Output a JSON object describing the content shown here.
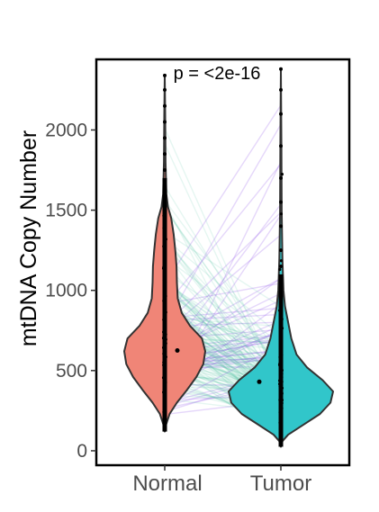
{
  "chart_data": {
    "type": "violin",
    "ylabel": "mtDNA Copy Number",
    "xlabel": "",
    "categories": [
      "Normal",
      "Tumor"
    ],
    "ylim": [
      -90,
      2440
    ],
    "yticks": [
      0,
      500,
      1000,
      1500,
      2000
    ],
    "annotation": "p = <2e-16",
    "grid": false,
    "legend": "none",
    "colors": {
      "Normal": "#f08577",
      "Tumor": "#31c6ca",
      "outline": "#333333",
      "pair_increase": "#8a4be6",
      "pair_decrease": "#5cc9a7"
    },
    "groups": [
      {
        "name": "Normal",
        "color": "#f08577",
        "min": 120,
        "max": 2340,
        "mean": 625,
        "density": [
          [
            120,
            0.0
          ],
          [
            160,
            0.03
          ],
          [
            230,
            0.12
          ],
          [
            300,
            0.3
          ],
          [
            380,
            0.55
          ],
          [
            460,
            0.78
          ],
          [
            540,
            0.95
          ],
          [
            620,
            1.0
          ],
          [
            700,
            0.92
          ],
          [
            780,
            0.62
          ],
          [
            860,
            0.42
          ],
          [
            950,
            0.32
          ],
          [
            1050,
            0.3
          ],
          [
            1150,
            0.29
          ],
          [
            1250,
            0.26
          ],
          [
            1350,
            0.22
          ],
          [
            1450,
            0.16
          ],
          [
            1520,
            0.08
          ],
          [
            1600,
            0.04
          ],
          [
            1800,
            0.02
          ],
          [
            2100,
            0.012
          ],
          [
            2340,
            0.0
          ]
        ]
      },
      {
        "name": "Tumor",
        "color": "#31c6ca",
        "min": 25,
        "max": 2380,
        "mean": 430,
        "density": [
          [
            25,
            0.0
          ],
          [
            60,
            0.03
          ],
          [
            100,
            0.14
          ],
          [
            160,
            0.42
          ],
          [
            230,
            0.75
          ],
          [
            300,
            0.95
          ],
          [
            370,
            1.0
          ],
          [
            440,
            0.8
          ],
          [
            520,
            0.5
          ],
          [
            600,
            0.3
          ],
          [
            700,
            0.2
          ],
          [
            800,
            0.14
          ],
          [
            900,
            0.08
          ],
          [
            1000,
            0.05
          ],
          [
            1200,
            0.03
          ],
          [
            1500,
            0.015
          ],
          [
            1900,
            0.01
          ],
          [
            2380,
            0.0
          ]
        ]
      }
    ],
    "paired_lines_note_count": 180
  }
}
